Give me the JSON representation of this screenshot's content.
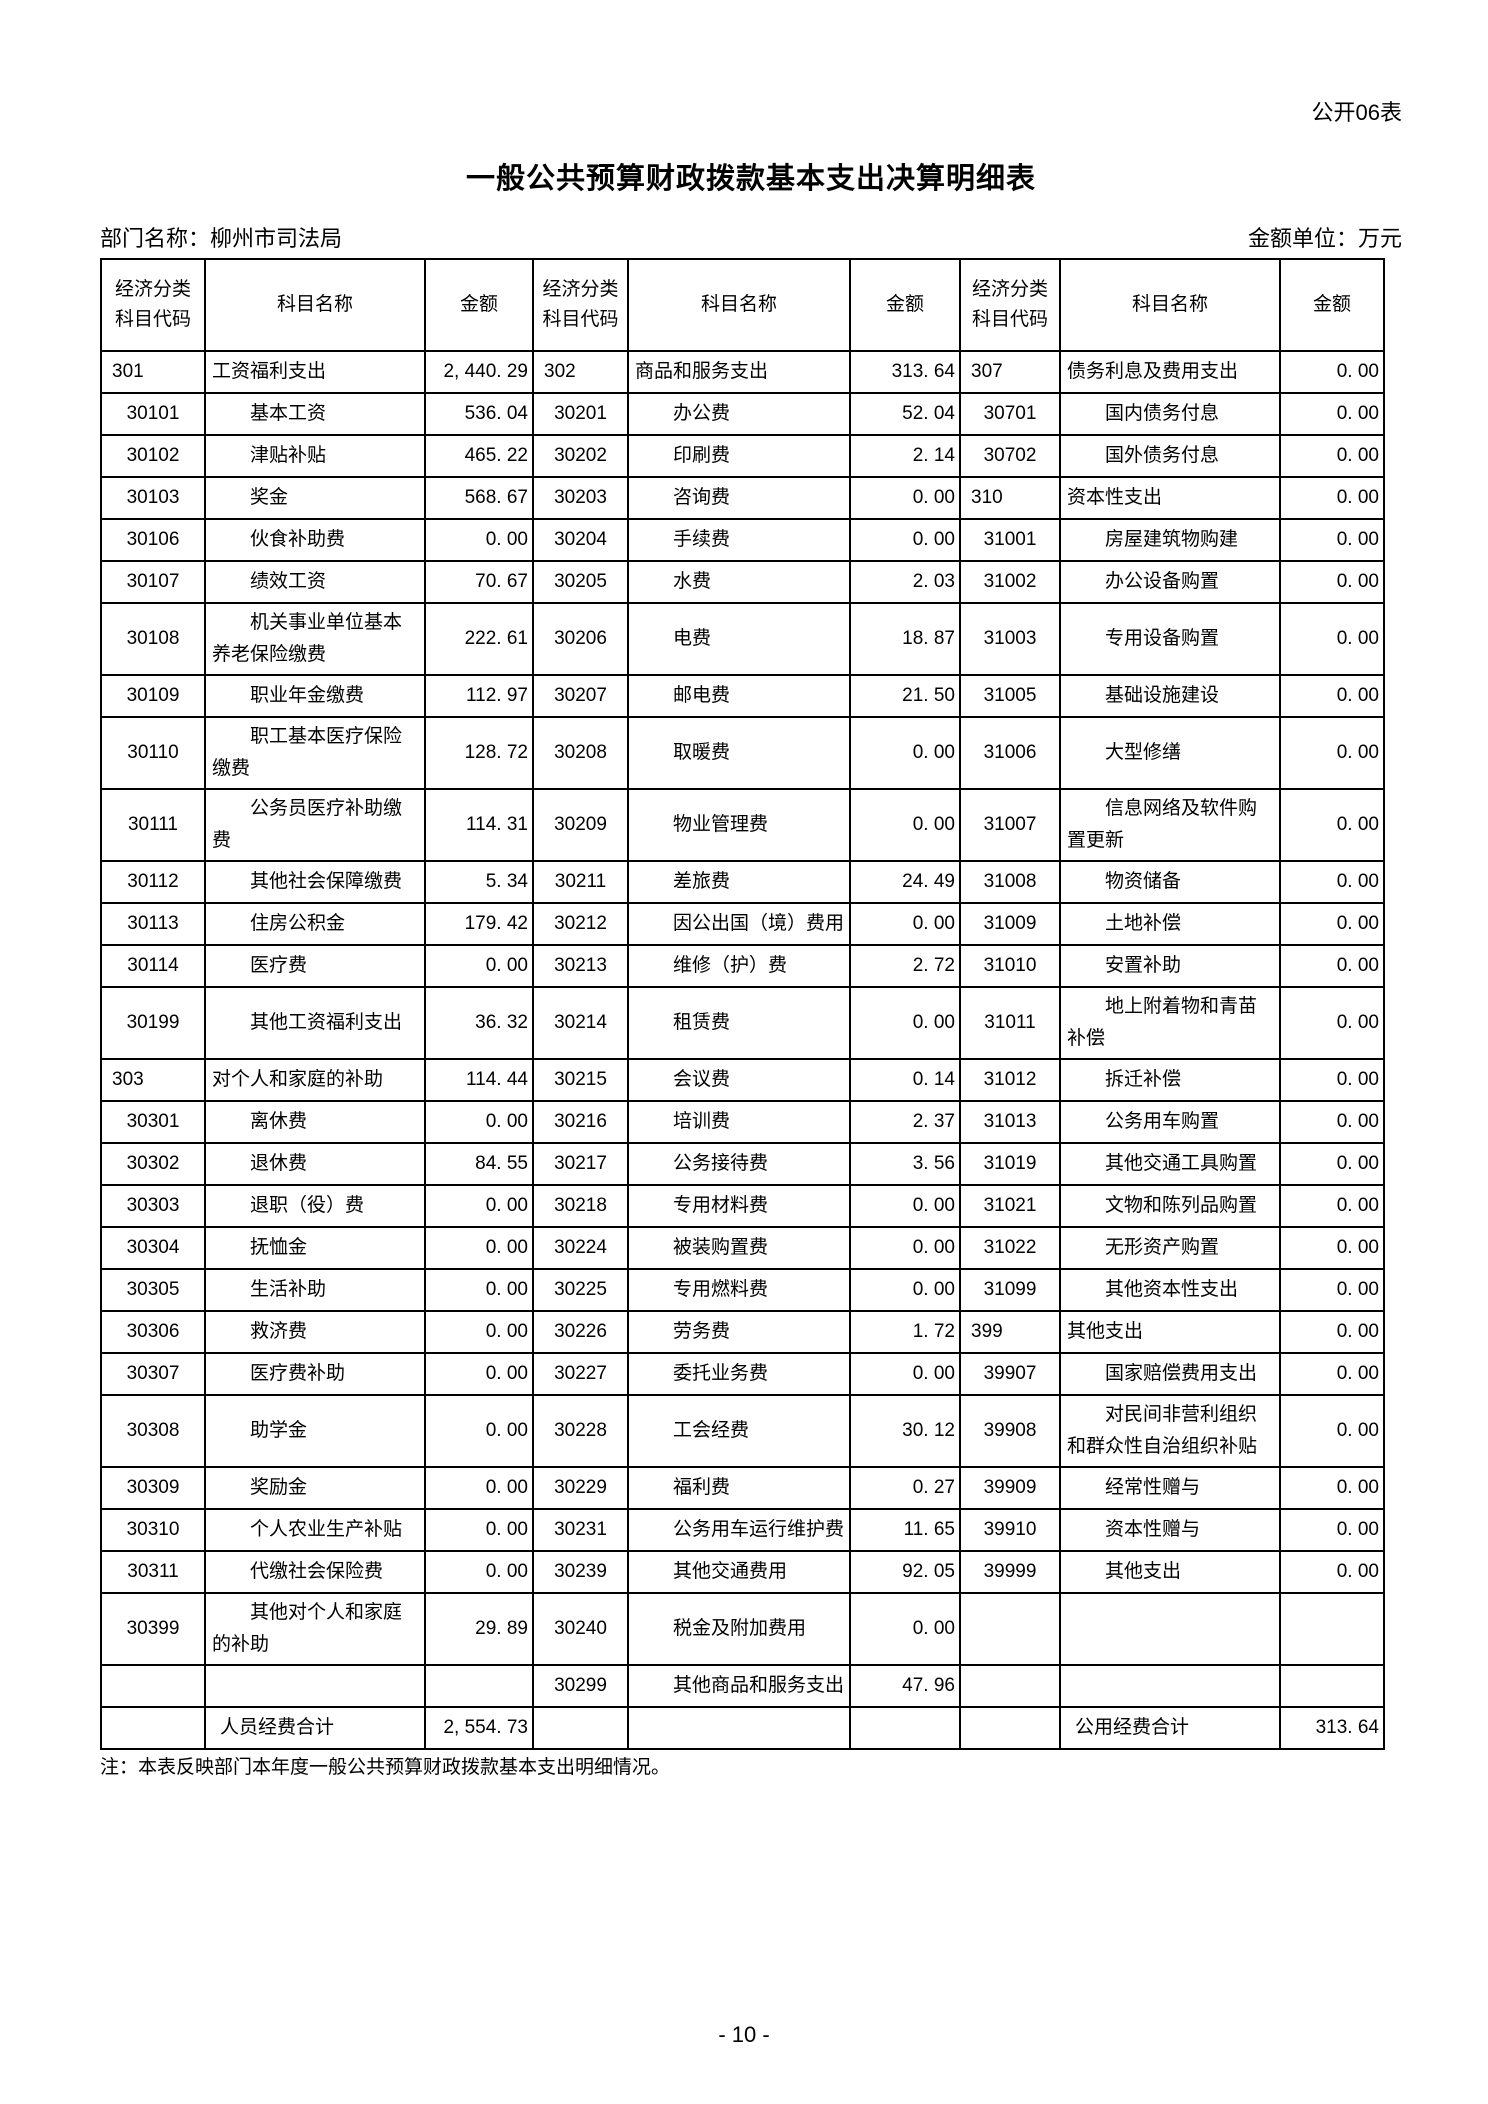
{
  "page": {
    "form_tag": "公开06表",
    "title": "一般公共预算财政拨款基本支出决算明细表",
    "department_label": "部门名称：柳州市司法局",
    "unit_label": "金额单位：万元",
    "note": "注：本表反映部门本年度一般公共预算财政拨款基本支出明细情况。",
    "page_number": "- 10 -"
  },
  "table": {
    "header": [
      "经济分类科目代码",
      "科目名称",
      "金额"
    ],
    "rows": [
      [
        {
          "code": "301",
          "name": "工资福利支出",
          "amt": "2, 440. 29",
          "l": 0
        },
        {
          "code": "302",
          "name": "商品和服务支出",
          "amt": "313. 64",
          "l": 0
        },
        {
          "code": "307",
          "name": "债务利息及费用支出",
          "amt": "0. 00",
          "l": 0
        }
      ],
      [
        {
          "code": "30101",
          "name": "基本工资",
          "amt": "536. 04",
          "l": 1
        },
        {
          "code": "30201",
          "name": "办公费",
          "amt": "52. 04",
          "l": 1
        },
        {
          "code": "30701",
          "name": "国内债务付息",
          "amt": "0. 00",
          "l": 1
        }
      ],
      [
        {
          "code": "30102",
          "name": "津贴补贴",
          "amt": "465. 22",
          "l": 1
        },
        {
          "code": "30202",
          "name": "印刷费",
          "amt": "2. 14",
          "l": 1
        },
        {
          "code": "30702",
          "name": "国外债务付息",
          "amt": "0. 00",
          "l": 1
        }
      ],
      [
        {
          "code": "30103",
          "name": "奖金",
          "amt": "568. 67",
          "l": 1
        },
        {
          "code": "30203",
          "name": "咨询费",
          "amt": "0. 00",
          "l": 1
        },
        {
          "code": "310",
          "name": "资本性支出",
          "amt": "0. 00",
          "l": 0
        }
      ],
      [
        {
          "code": "30106",
          "name": "伙食补助费",
          "amt": "0. 00",
          "l": 1
        },
        {
          "code": "30204",
          "name": "手续费",
          "amt": "0. 00",
          "l": 1
        },
        {
          "code": "31001",
          "name": "房屋建筑物购建",
          "amt": "0. 00",
          "l": 1
        }
      ],
      [
        {
          "code": "30107",
          "name": "绩效工资",
          "amt": "70. 67",
          "l": 1
        },
        {
          "code": "30205",
          "name": "水费",
          "amt": "2. 03",
          "l": 1
        },
        {
          "code": "31002",
          "name": "办公设备购置",
          "amt": "0. 00",
          "l": 1
        }
      ],
      [
        {
          "code": "30108",
          "name": "机关事业单位基本养老保险缴费",
          "amt": "222. 61",
          "l": 1
        },
        {
          "code": "30206",
          "name": "电费",
          "amt": "18. 87",
          "l": 1
        },
        {
          "code": "31003",
          "name": "专用设备购置",
          "amt": "0. 00",
          "l": 1
        }
      ],
      [
        {
          "code": "30109",
          "name": "职业年金缴费",
          "amt": "112. 97",
          "l": 1
        },
        {
          "code": "30207",
          "name": "邮电费",
          "amt": "21. 50",
          "l": 1
        },
        {
          "code": "31005",
          "name": "基础设施建设",
          "amt": "0. 00",
          "l": 1
        }
      ],
      [
        {
          "code": "30110",
          "name": "职工基本医疗保险缴费",
          "amt": "128. 72",
          "l": 1
        },
        {
          "code": "30208",
          "name": "取暖费",
          "amt": "0. 00",
          "l": 1
        },
        {
          "code": "31006",
          "name": "大型修缮",
          "amt": "0. 00",
          "l": 1
        }
      ],
      [
        {
          "code": "30111",
          "name": "公务员医疗补助缴费",
          "amt": "114. 31",
          "l": 1
        },
        {
          "code": "30209",
          "name": "物业管理费",
          "amt": "0. 00",
          "l": 1
        },
        {
          "code": "31007",
          "name": "信息网络及软件购置更新",
          "amt": "0. 00",
          "l": 1
        }
      ],
      [
        {
          "code": "30112",
          "name": "其他社会保障缴费",
          "amt": "5. 34",
          "l": 1
        },
        {
          "code": "30211",
          "name": "差旅费",
          "amt": "24. 49",
          "l": 1
        },
        {
          "code": "31008",
          "name": "物资储备",
          "amt": "0. 00",
          "l": 1
        }
      ],
      [
        {
          "code": "30113",
          "name": "住房公积金",
          "amt": "179. 42",
          "l": 1
        },
        {
          "code": "30212",
          "name": "因公出国（境）费用",
          "amt": "0. 00",
          "l": 1
        },
        {
          "code": "31009",
          "name": "土地补偿",
          "amt": "0. 00",
          "l": 1
        }
      ],
      [
        {
          "code": "30114",
          "name": "医疗费",
          "amt": "0. 00",
          "l": 1
        },
        {
          "code": "30213",
          "name": "维修（护）费",
          "amt": "2. 72",
          "l": 1
        },
        {
          "code": "31010",
          "name": "安置补助",
          "amt": "0. 00",
          "l": 1
        }
      ],
      [
        {
          "code": "30199",
          "name": "其他工资福利支出",
          "amt": "36. 32",
          "l": 1
        },
        {
          "code": "30214",
          "name": "租赁费",
          "amt": "0. 00",
          "l": 1
        },
        {
          "code": "31011",
          "name": "地上附着物和青苗补偿",
          "amt": "0. 00",
          "l": 1
        }
      ],
      [
        {
          "code": "303",
          "name": "对个人和家庭的补助",
          "amt": "114. 44",
          "l": 0
        },
        {
          "code": "30215",
          "name": "会议费",
          "amt": "0. 14",
          "l": 1
        },
        {
          "code": "31012",
          "name": "拆迁补偿",
          "amt": "0. 00",
          "l": 1
        }
      ],
      [
        {
          "code": "30301",
          "name": "离休费",
          "amt": "0. 00",
          "l": 1
        },
        {
          "code": "30216",
          "name": "培训费",
          "amt": "2. 37",
          "l": 1
        },
        {
          "code": "31013",
          "name": "公务用车购置",
          "amt": "0. 00",
          "l": 1
        }
      ],
      [
        {
          "code": "30302",
          "name": "退休费",
          "amt": "84. 55",
          "l": 1
        },
        {
          "code": "30217",
          "name": "公务接待费",
          "amt": "3. 56",
          "l": 1
        },
        {
          "code": "31019",
          "name": "其他交通工具购置",
          "amt": "0. 00",
          "l": 1
        }
      ],
      [
        {
          "code": "30303",
          "name": "退职（役）费",
          "amt": "0. 00",
          "l": 1
        },
        {
          "code": "30218",
          "name": "专用材料费",
          "amt": "0. 00",
          "l": 1
        },
        {
          "code": "31021",
          "name": "文物和陈列品购置",
          "amt": "0. 00",
          "l": 1
        }
      ],
      [
        {
          "code": "30304",
          "name": "抚恤金",
          "amt": "0. 00",
          "l": 1
        },
        {
          "code": "30224",
          "name": "被装购置费",
          "amt": "0. 00",
          "l": 1
        },
        {
          "code": "31022",
          "name": "无形资产购置",
          "amt": "0. 00",
          "l": 1
        }
      ],
      [
        {
          "code": "30305",
          "name": "生活补助",
          "amt": "0. 00",
          "l": 1
        },
        {
          "code": "30225",
          "name": "专用燃料费",
          "amt": "0. 00",
          "l": 1
        },
        {
          "code": "31099",
          "name": "其他资本性支出",
          "amt": "0. 00",
          "l": 1
        }
      ],
      [
        {
          "code": "30306",
          "name": "救济费",
          "amt": "0. 00",
          "l": 1
        },
        {
          "code": "30226",
          "name": "劳务费",
          "amt": "1. 72",
          "l": 1
        },
        {
          "code": "399",
          "name": "其他支出",
          "amt": "0. 00",
          "l": 0
        }
      ],
      [
        {
          "code": "30307",
          "name": "医疗费补助",
          "amt": "0. 00",
          "l": 1
        },
        {
          "code": "30227",
          "name": "委托业务费",
          "amt": "0. 00",
          "l": 1
        },
        {
          "code": "39907",
          "name": "国家赔偿费用支出",
          "amt": "0. 00",
          "l": 1
        }
      ],
      [
        {
          "code": "30308",
          "name": "助学金",
          "amt": "0. 00",
          "l": 1
        },
        {
          "code": "30228",
          "name": "工会经费",
          "amt": "30. 12",
          "l": 1
        },
        {
          "code": "39908",
          "name": "对民间非营利组织和群众性自治组织补贴",
          "amt": "0. 00",
          "l": 1
        }
      ],
      [
        {
          "code": "30309",
          "name": "奖励金",
          "amt": "0. 00",
          "l": 1
        },
        {
          "code": "30229",
          "name": "福利费",
          "amt": "0. 27",
          "l": 1
        },
        {
          "code": "39909",
          "name": "经常性赠与",
          "amt": "0. 00",
          "l": 1
        }
      ],
      [
        {
          "code": "30310",
          "name": "个人农业生产补贴",
          "amt": "0. 00",
          "l": 1
        },
        {
          "code": "30231",
          "name": "公务用车运行维护费",
          "amt": "11. 65",
          "l": 1
        },
        {
          "code": "39910",
          "name": "资本性赠与",
          "amt": "0. 00",
          "l": 1
        }
      ],
      [
        {
          "code": "30311",
          "name": "代缴社会保险费",
          "amt": "0. 00",
          "l": 1
        },
        {
          "code": "30239",
          "name": "其他交通费用",
          "amt": "92. 05",
          "l": 1
        },
        {
          "code": "39999",
          "name": "其他支出",
          "amt": "0. 00",
          "l": 1
        }
      ],
      [
        {
          "code": "30399",
          "name": "其他对个人和家庭的补助",
          "amt": "29. 89",
          "l": 1
        },
        {
          "code": "30240",
          "name": "税金及附加费用",
          "amt": "0. 00",
          "l": 1
        },
        {
          "code": "",
          "name": "",
          "amt": "",
          "l": 1
        }
      ],
      [
        {
          "code": "",
          "name": "",
          "amt": "",
          "l": 1
        },
        {
          "code": "30299",
          "name": "其他商品和服务支出",
          "amt": "47. 96",
          "l": 1
        },
        {
          "code": "",
          "name": "",
          "amt": "",
          "l": 1
        }
      ],
      [
        {
          "code": "",
          "name": "人员经费合计",
          "amt": "2, 554. 73",
          "l": 2
        },
        {
          "code": "",
          "name": "",
          "amt": "",
          "l": 2
        },
        {
          "code": "",
          "name": "公用经费合计",
          "amt": "313. 64",
          "l": 2
        }
      ]
    ]
  }
}
